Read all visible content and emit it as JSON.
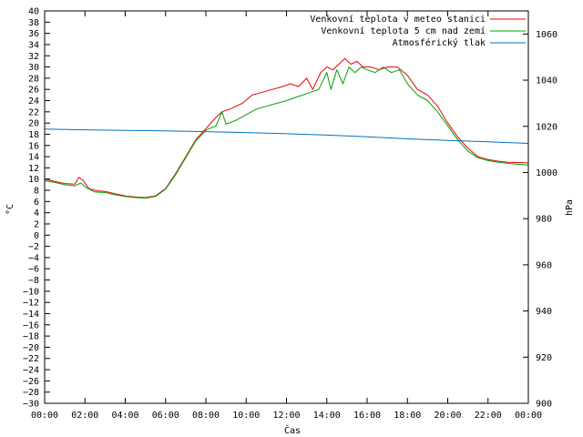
{
  "chart_data": {
    "type": "line",
    "xlabel": "Čas",
    "ylabel_left": "°C",
    "ylabel_right": "hPa",
    "ylim_left": [
      -30,
      40
    ],
    "ylim_right": [
      900,
      1070
    ],
    "xlim": [
      0,
      24
    ],
    "grid": false,
    "legend_position": "top-right",
    "x_ticks": [
      "00:00",
      "02:00",
      "04:00",
      "06:00",
      "08:00",
      "10:00",
      "12:00",
      "14:00",
      "16:00",
      "18:00",
      "20:00",
      "22:00",
      "00:00"
    ],
    "y_ticks_left": [
      -30,
      -28,
      -26,
      -24,
      -22,
      -20,
      -18,
      -16,
      -14,
      -12,
      -10,
      -8,
      -6,
      -4,
      -2,
      0,
      2,
      4,
      6,
      8,
      10,
      12,
      14,
      16,
      18,
      20,
      22,
      24,
      26,
      28,
      30,
      32,
      34,
      36,
      38,
      40
    ],
    "y_ticks_right": [
      900,
      920,
      940,
      960,
      980,
      1000,
      1020,
      1040,
      1060
    ],
    "series": [
      {
        "name": "Venkovní teplota v meteo stanici",
        "color": "#e8000b",
        "axis": "left",
        "points": [
          [
            0,
            10
          ],
          [
            0.5,
            9.6
          ],
          [
            1,
            9.2
          ],
          [
            1.5,
            9.1
          ],
          [
            1.7,
            10.3
          ],
          [
            1.9,
            9.8
          ],
          [
            2.2,
            8.3
          ],
          [
            2.6,
            7.9
          ],
          [
            3,
            7.8
          ],
          [
            3.5,
            7.4
          ],
          [
            4,
            7
          ],
          [
            4.5,
            6.8
          ],
          [
            5,
            6.7
          ],
          [
            5.5,
            7
          ],
          [
            6,
            8.3
          ],
          [
            6.5,
            11
          ],
          [
            7,
            14
          ],
          [
            7.5,
            17
          ],
          [
            8,
            19
          ],
          [
            8.5,
            21
          ],
          [
            8.8,
            22
          ],
          [
            9.2,
            22.5
          ],
          [
            9.8,
            23.5
          ],
          [
            10.3,
            25
          ],
          [
            10.8,
            25.5
          ],
          [
            11.3,
            26
          ],
          [
            11.8,
            26.5
          ],
          [
            12.2,
            27
          ],
          [
            12.6,
            26.5
          ],
          [
            13,
            28
          ],
          [
            13.3,
            26
          ],
          [
            13.7,
            29
          ],
          [
            14,
            30
          ],
          [
            14.3,
            29.5
          ],
          [
            14.6,
            30.5
          ],
          [
            14.9,
            31.5
          ],
          [
            15.2,
            30.5
          ],
          [
            15.5,
            31
          ],
          [
            15.8,
            30
          ],
          [
            16.2,
            30
          ],
          [
            16.6,
            29.5
          ],
          [
            17,
            30
          ],
          [
            17.5,
            30
          ],
          [
            18,
            28.5
          ],
          [
            18.5,
            26
          ],
          [
            19,
            25
          ],
          [
            19.5,
            23
          ],
          [
            20,
            20
          ],
          [
            20.5,
            17.5
          ],
          [
            21,
            15.5
          ],
          [
            21.5,
            14
          ],
          [
            22,
            13.5
          ],
          [
            22.5,
            13.2
          ],
          [
            23,
            13
          ],
          [
            24,
            12.9
          ]
        ]
      },
      {
        "name": "Venkovní teplota 5 cm nad zemí",
        "color": "#00a000",
        "axis": "left",
        "points": [
          [
            0,
            9.7
          ],
          [
            0.5,
            9.4
          ],
          [
            1,
            9
          ],
          [
            1.5,
            8.8
          ],
          [
            1.8,
            9.3
          ],
          [
            2.1,
            8.4
          ],
          [
            2.5,
            7.7
          ],
          [
            3,
            7.6
          ],
          [
            3.5,
            7.2
          ],
          [
            4,
            6.9
          ],
          [
            4.5,
            6.7
          ],
          [
            5,
            6.6
          ],
          [
            5.5,
            6.9
          ],
          [
            6,
            8.2
          ],
          [
            6.5,
            10.8
          ],
          [
            7,
            13.8
          ],
          [
            7.5,
            16.8
          ],
          [
            8,
            18.7
          ],
          [
            8.5,
            19.5
          ],
          [
            8.8,
            22
          ],
          [
            9,
            19.8
          ],
          [
            9.5,
            20.5
          ],
          [
            10,
            21.5
          ],
          [
            10.5,
            22.5
          ],
          [
            11,
            23
          ],
          [
            11.5,
            23.5
          ],
          [
            12,
            24
          ],
          [
            12.4,
            24.5
          ],
          [
            12.8,
            25
          ],
          [
            13.2,
            25.5
          ],
          [
            13.6,
            26
          ],
          [
            14,
            29
          ],
          [
            14.2,
            26
          ],
          [
            14.5,
            29.5
          ],
          [
            14.8,
            27
          ],
          [
            15.1,
            30
          ],
          [
            15.4,
            29
          ],
          [
            15.7,
            30
          ],
          [
            16,
            29.5
          ],
          [
            16.4,
            29
          ],
          [
            16.8,
            30
          ],
          [
            17.2,
            29
          ],
          [
            17.6,
            29.5
          ],
          [
            18,
            27
          ],
          [
            18.5,
            25
          ],
          [
            19,
            24
          ],
          [
            19.5,
            22
          ],
          [
            20,
            19.5
          ],
          [
            20.5,
            17
          ],
          [
            21,
            15
          ],
          [
            21.5,
            13.8
          ],
          [
            22,
            13.3
          ],
          [
            22.5,
            13
          ],
          [
            23,
            12.8
          ],
          [
            24,
            12.5
          ]
        ]
      },
      {
        "name": "Atmosférický tlak",
        "color": "#0072bd",
        "axis": "right",
        "points": [
          [
            0,
            1018.8
          ],
          [
            2,
            1018.5
          ],
          [
            4,
            1018.2
          ],
          [
            6,
            1018
          ],
          [
            8,
            1017.7
          ],
          [
            10,
            1017.3
          ],
          [
            12,
            1016.8
          ],
          [
            14,
            1016.2
          ],
          [
            16,
            1015.5
          ],
          [
            18,
            1014.6
          ],
          [
            20,
            1013.9
          ],
          [
            22,
            1013.3
          ],
          [
            24,
            1012.6
          ]
        ]
      }
    ]
  }
}
